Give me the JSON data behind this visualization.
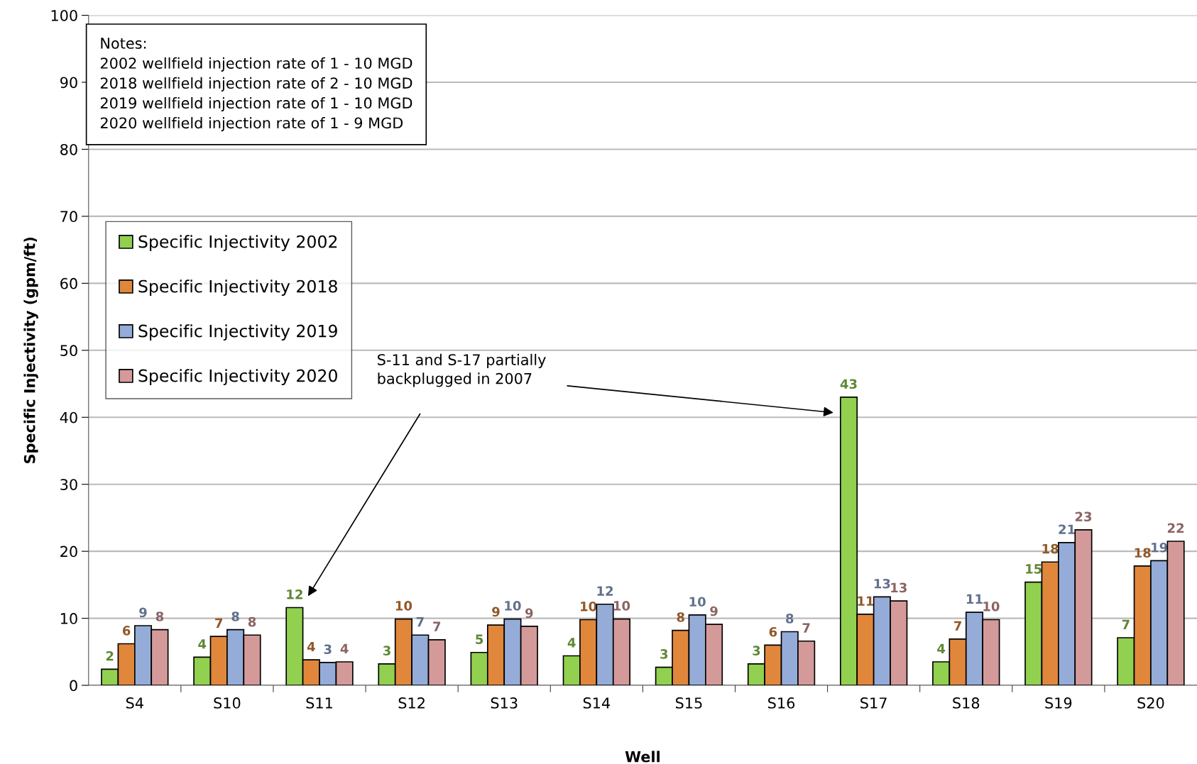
{
  "chart_data": {
    "type": "bar",
    "xlabel": "Well",
    "ylabel": "Specific Injectivity (gpm/ft)",
    "categories": [
      "S4",
      "S10",
      "S11",
      "S12",
      "S13",
      "S14",
      "S15",
      "S16",
      "S17",
      "S18",
      "S19",
      "S20"
    ],
    "series": [
      {
        "name": "Specific Injectivity 2002",
        "color": "#92d050",
        "values": [
          2.4,
          4.2,
          11.6,
          3.2,
          4.9,
          4.4,
          2.7,
          3.2,
          43.0,
          3.5,
          15.4,
          7.1
        ],
        "value_labels": [
          "2",
          "4",
          "12",
          "3",
          "5",
          "4",
          "3",
          "3",
          "43",
          "4",
          "15",
          "7"
        ]
      },
      {
        "name": "Specific Injectivity 2018",
        "color": "#e0873c",
        "values": [
          6.2,
          7.3,
          3.8,
          9.9,
          9.0,
          9.8,
          8.2,
          6.0,
          10.6,
          6.9,
          18.4,
          17.8
        ],
        "value_labels": [
          "6",
          "7",
          "4",
          "10",
          "9",
          "10",
          "8",
          "6",
          "11",
          "7",
          "18",
          "18"
        ]
      },
      {
        "name": "Specific Injectivity 2019",
        "color": "#95acd8",
        "values": [
          8.9,
          8.3,
          3.4,
          7.5,
          9.9,
          12.1,
          10.5,
          8.0,
          13.2,
          10.9,
          21.3,
          18.6
        ],
        "value_labels": [
          "9",
          "8",
          "3",
          "7",
          "10",
          "12",
          "10",
          "8",
          "13",
          "11",
          "21",
          "19"
        ]
      },
      {
        "name": "Specific Injectivity 2020",
        "color": "#d49a9a",
        "values": [
          8.3,
          7.5,
          3.5,
          6.8,
          8.8,
          9.9,
          9.1,
          6.6,
          12.6,
          9.8,
          23.2,
          21.5
        ],
        "value_labels": [
          "8",
          "8",
          "4",
          "7",
          "9",
          "10",
          "9",
          "7",
          "13",
          "10",
          "23",
          "22"
        ]
      }
    ],
    "ylim": [
      0,
      100
    ],
    "yticks": [
      0,
      10,
      20,
      30,
      40,
      50,
      60,
      70,
      80,
      90,
      100
    ],
    "grid": "y",
    "legend": "left",
    "annotations": [
      "Notes:\n2002 wellfield injection rate of 1 - 10 MGD\n2018 wellfield injection rate of 2 - 10 MGD\n2019 wellfield injection rate of 1 - 10 MGD\n2020 wellfield injection rate of 1 - 9 MGD",
      "S-11 and S-17 partially\nbackplugged in 2007"
    ]
  }
}
